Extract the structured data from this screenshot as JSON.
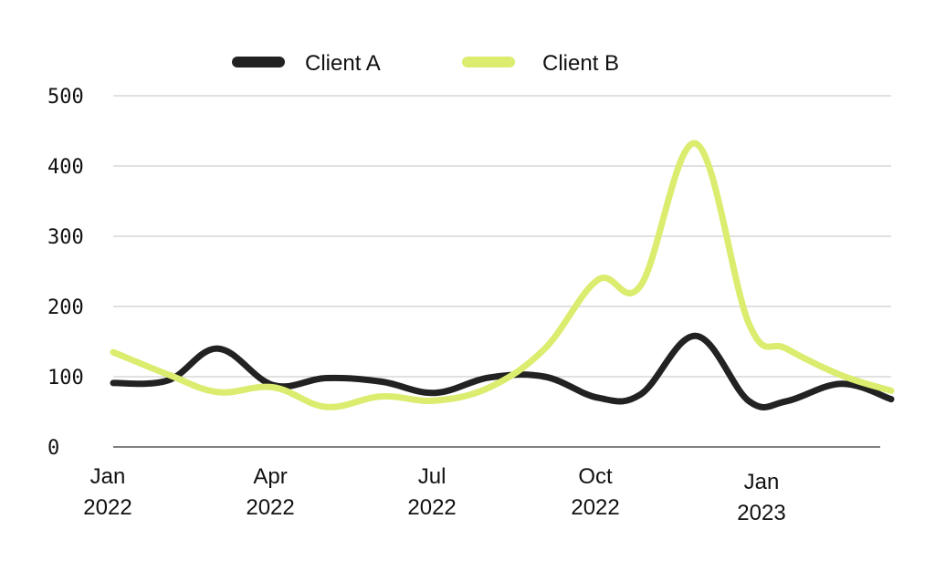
{
  "chart_data": {
    "type": "line",
    "x": [
      "Jan 2022",
      "Feb 2022",
      "Mar 2022",
      "Apr 2022",
      "May 2022",
      "Jun 2022",
      "Jul 2022",
      "Aug 2022",
      "Sep 2022",
      "Oct 2022",
      "Nov 2022",
      "Dec 2022",
      "Jan 2023",
      "Feb 2023",
      "Mar 2023"
    ],
    "x_ticks": [
      {
        "x": "Jan 2022",
        "line1": "Jan",
        "line2": "2022"
      },
      {
        "x": "Apr 2022",
        "line1": "Apr",
        "line2": "2022"
      },
      {
        "x": "Jul 2022",
        "line1": "Jul",
        "line2": "2022"
      },
      {
        "x": "Oct 2022",
        "line1": "Oct",
        "line2": "2022"
      },
      {
        "x": "Jan 2023",
        "line1": "Jan",
        "line2": "2023"
      }
    ],
    "y_ticks": [
      0,
      100,
      200,
      300,
      400,
      500
    ],
    "ylim": [
      0,
      500
    ],
    "grid": true,
    "legend_position": "top-center",
    "series": [
      {
        "name": "Client A",
        "color": "#222222",
        "points": [
          [
            "2022-01-01",
            91
          ],
          [
            "2022-02-01",
            95
          ],
          [
            "2022-03-01",
            140
          ],
          [
            "2022-04-01",
            88
          ],
          [
            "2022-05-01",
            98
          ],
          [
            "2022-06-01",
            93
          ],
          [
            "2022-07-01",
            77
          ],
          [
            "2022-08-01",
            99
          ],
          [
            "2022-09-01",
            100
          ],
          [
            "2022-10-01",
            70
          ],
          [
            "2022-10-25",
            75
          ],
          [
            "2022-11-25",
            158
          ],
          [
            "2022-12-25",
            65
          ],
          [
            "2023-01-15",
            65
          ],
          [
            "2023-02-15",
            90
          ],
          [
            "2023-03-15",
            68
          ]
        ]
      },
      {
        "name": "Client B",
        "color": "#dbec6e",
        "points": [
          [
            "2022-01-01",
            135
          ],
          [
            "2022-02-01",
            103
          ],
          [
            "2022-03-01",
            78
          ],
          [
            "2022-04-01",
            85
          ],
          [
            "2022-05-01",
            57
          ],
          [
            "2022-06-01",
            72
          ],
          [
            "2022-07-01",
            66
          ],
          [
            "2022-08-01",
            85
          ],
          [
            "2022-09-01",
            140
          ],
          [
            "2022-10-01",
            238
          ],
          [
            "2022-10-25",
            230
          ],
          [
            "2022-11-25",
            432
          ],
          [
            "2022-12-25",
            175
          ],
          [
            "2023-01-15",
            140
          ],
          [
            "2023-02-15",
            102
          ],
          [
            "2023-03-15",
            80
          ]
        ]
      }
    ]
  }
}
